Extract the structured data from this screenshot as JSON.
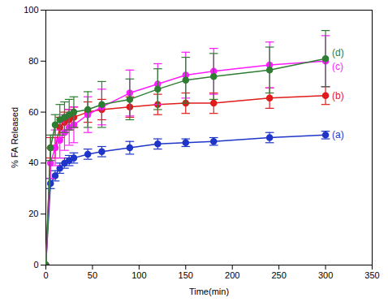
{
  "chart_data": {
    "type": "line",
    "x_label": "Time(min)",
    "y_label": "% FA Released",
    "xlim": [
      0,
      350
    ],
    "xticks": [
      0,
      50,
      100,
      150,
      200,
      250,
      300,
      350
    ],
    "ylim": [
      0,
      100
    ],
    "yticks": [
      0,
      20,
      40,
      60,
      80,
      100
    ],
    "x": [
      0,
      5,
      10,
      15,
      20,
      25,
      30,
      45,
      60,
      90,
      120,
      150,
      180,
      240,
      300
    ],
    "marker": "circle",
    "line_style": "solid",
    "series": [
      {
        "name": "(a)",
        "color": "#1f35c8",
        "values": [
          0,
          32,
          35,
          38,
          40,
          41,
          42,
          43.5,
          44.5,
          46,
          47.5,
          48,
          48.5,
          50,
          51
        ],
        "errors": [
          0,
          2,
          2,
          2,
          2,
          2,
          2,
          2,
          2,
          2.5,
          2,
          1.5,
          1.5,
          2,
          1.5
        ]
      },
      {
        "name": "(b)",
        "color": "#e01b1b",
        "values": [
          0,
          46,
          46,
          54,
          56,
          57,
          58,
          60,
          61,
          62,
          63,
          63.5,
          63.5,
          65.5,
          66.5
        ],
        "errors": [
          0,
          4,
          4,
          4,
          4,
          4,
          4,
          4,
          4,
          4,
          4,
          4,
          4,
          4,
          3.5
        ]
      },
      {
        "name": "(c)",
        "color": "#ff1aff",
        "values": [
          0,
          40,
          46,
          49,
          52,
          54,
          55,
          59,
          62,
          67.5,
          71,
          74.5,
          76,
          78.5,
          80
        ],
        "errors": [
          0,
          6,
          7,
          7,
          7,
          7,
          7,
          7,
          7,
          9,
          8,
          9,
          9,
          9,
          10
        ]
      },
      {
        "name": "(d)",
        "color": "#2e7d32",
        "values": [
          0,
          46,
          55,
          57,
          58,
          59,
          60,
          61,
          63,
          65,
          69,
          72.5,
          74,
          76.5,
          81
        ],
        "errors": [
          0,
          5,
          4,
          6,
          6,
          6,
          6,
          7,
          9,
          8,
          8,
          9,
          9,
          9,
          11
        ]
      }
    ]
  }
}
